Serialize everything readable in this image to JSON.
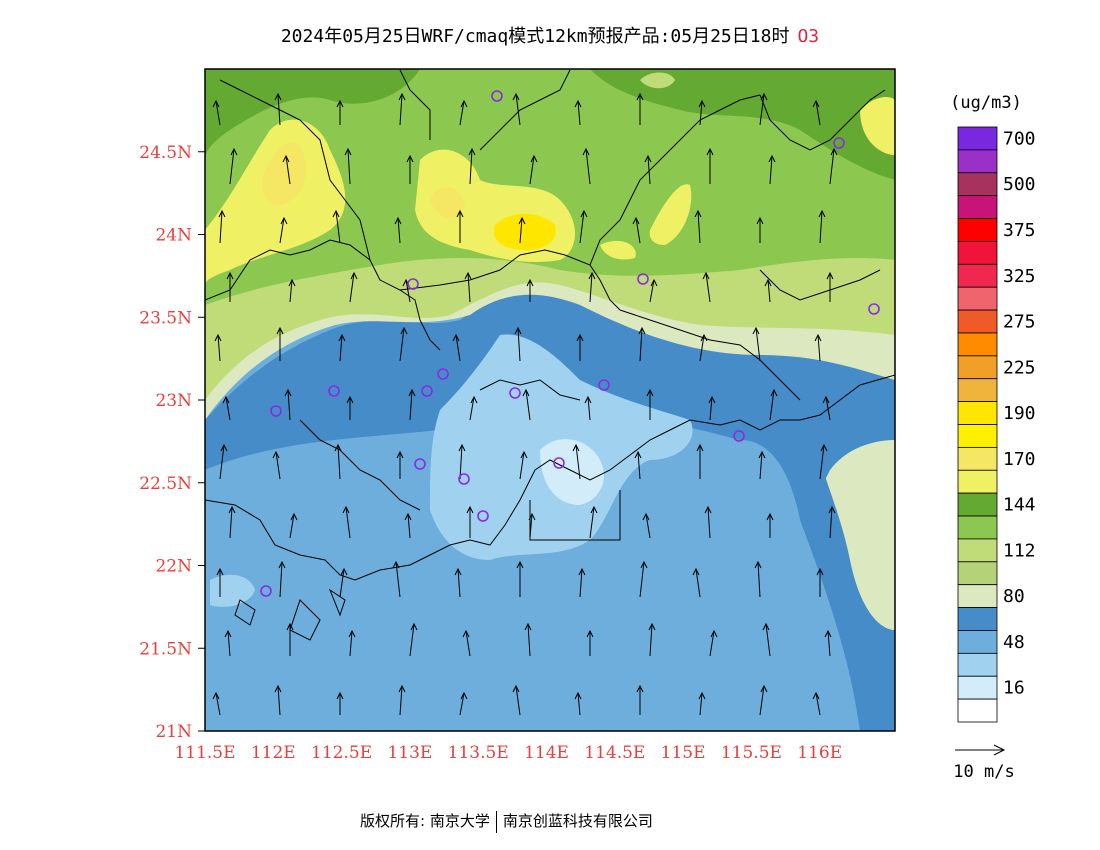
{
  "title": {
    "main": "2024年05月25日WRF/cmaq模式12km预报产品:05月25日18时",
    "pollutant": "O3"
  },
  "legend": {
    "unit": "(ug/m3)",
    "levels": [
      {
        "label": "700",
        "color": "#7a28e0"
      },
      {
        "label": "",
        "color": "#9b30c8"
      },
      {
        "label": "500",
        "color": "#a8325e"
      },
      {
        "label": "",
        "color": "#c81478"
      },
      {
        "label": "375",
        "color": "#ff0000"
      },
      {
        "label": "",
        "color": "#f0143c"
      },
      {
        "label": "325",
        "color": "#f02850"
      },
      {
        "label": "",
        "color": "#f0646e"
      },
      {
        "label": "275",
        "color": "#ef5a28"
      },
      {
        "label": "",
        "color": "#ff8c00"
      },
      {
        "label": "225",
        "color": "#f0a028"
      },
      {
        "label": "",
        "color": "#f0b43c"
      },
      {
        "label": "190",
        "color": "#ffe600"
      },
      {
        "label": "",
        "color": "#fff000"
      },
      {
        "label": "170",
        "color": "#f5e664"
      },
      {
        "label": "",
        "color": "#f0f064"
      },
      {
        "label": "144",
        "color": "#64aa32"
      },
      {
        "label": "",
        "color": "#8cc850"
      },
      {
        "label": "112",
        "color": "#c0dc78"
      },
      {
        "label": "",
        "color": "#b4d278"
      },
      {
        "label": "80",
        "color": "#dce8c0"
      },
      {
        "label": "",
        "color": "#468cc8"
      },
      {
        "label": "48",
        "color": "#6eaedc"
      },
      {
        "label": "",
        "color": "#a0d2f0"
      },
      {
        "label": "16",
        "color": "#d2ecfa"
      },
      {
        "label": "",
        "color": "#ffffff"
      }
    ]
  },
  "wind_scale": {
    "label": "10 m/s"
  },
  "axes": {
    "x_ticks": [
      "111.5E",
      "112E",
      "112.5E",
      "113E",
      "113.5E",
      "114E",
      "114.5E",
      "115E",
      "115.5E",
      "116E"
    ],
    "y_ticks": [
      "21N",
      "21.5N",
      "22N",
      "22.5N",
      "23N",
      "23.5N",
      "24N",
      "24.5N"
    ],
    "tick_color": "#e8413c"
  },
  "footer": {
    "left": "版权所有: 南京大学",
    "right": "南京创蓝科技有限公司"
  }
}
